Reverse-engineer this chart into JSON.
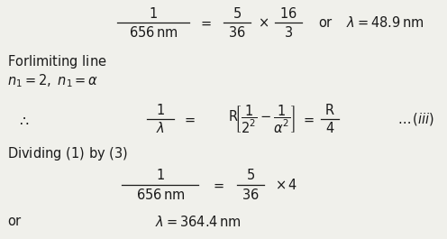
{
  "bg_color": "#f0f0eb",
  "text_color": "#1a1a1a",
  "figsize": [
    4.96,
    2.65
  ],
  "dpi": 100,
  "fs": 10.5
}
